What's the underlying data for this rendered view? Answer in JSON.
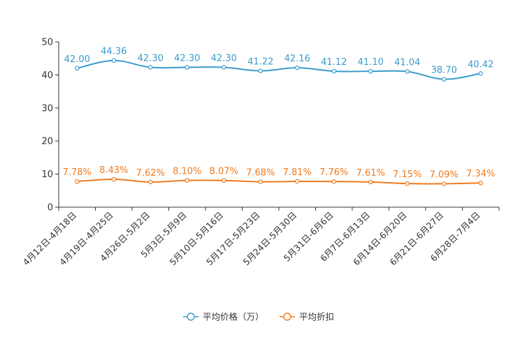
{
  "colors": {
    "price": "#3a9bcd",
    "discount": "#f07a1d",
    "axis": "#333333"
  },
  "chart_data": {
    "type": "line",
    "title": "",
    "xlabel": "",
    "ylabel": "",
    "ylim": [
      0,
      50
    ],
    "yticks": [
      0,
      10,
      20,
      30,
      40,
      50
    ],
    "grid": false,
    "legend_position": "bottom",
    "categories": [
      "4月12日-4月18日",
      "4月19日-4月25日",
      "4月26日-5月2日",
      "5月3日-5月9日",
      "5月10日-5月16日",
      "5月17日-5月23日",
      "5月24日-5月30日",
      "5月31日-6月6日",
      "6月7日-6月13日",
      "6月14日-6月20日",
      "6月21日-6月27日",
      "6月28日-7月4日"
    ],
    "series": [
      {
        "name": "平均价格（万）",
        "color": "#3a9bcd",
        "values": [
          42.0,
          44.36,
          42.3,
          42.3,
          42.3,
          41.22,
          42.16,
          41.12,
          41.1,
          41.04,
          38.7,
          40.42
        ],
        "labels": [
          "42.00",
          "44.36",
          "42.30",
          "42.30",
          "42.30",
          "41.22",
          "42.16",
          "41.12",
          "41.10",
          "41.04",
          "38.70",
          "40.42"
        ]
      },
      {
        "name": "平均折扣",
        "color": "#f07a1d",
        "values": [
          7.78,
          8.43,
          7.62,
          8.1,
          8.07,
          7.68,
          7.81,
          7.76,
          7.61,
          7.15,
          7.09,
          7.34
        ],
        "labels": [
          "7.78%",
          "8.43%",
          "7.62%",
          "8.10%",
          "8.07%",
          "7.68%",
          "7.81%",
          "7.76%",
          "7.61%",
          "7.15%",
          "7.09%",
          "7.34%"
        ]
      }
    ]
  }
}
